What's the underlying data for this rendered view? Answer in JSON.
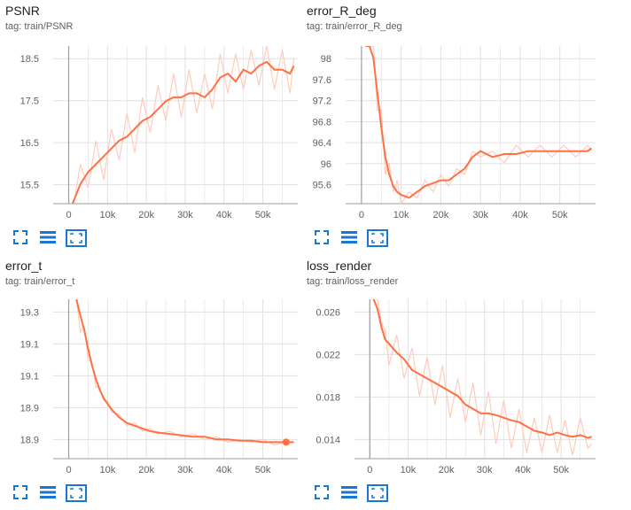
{
  "colors": {
    "line": "#ff7043",
    "raw": "#ffccbc",
    "grid": "#e0e0e0",
    "axis": "#9e9e9e",
    "icon": "#1976d2"
  },
  "icons": {
    "fullscreen": "fullscreen-icon",
    "data": "list-icon",
    "fit": "fit-domain-icon"
  },
  "chart_data": [
    {
      "type": "line",
      "title": "PSNR",
      "tag": "tag: train/PSNR",
      "x_ticks": [
        "0",
        "10k",
        "20k",
        "30k",
        "40k",
        "50k"
      ],
      "y_ticks": [
        "15.5",
        "16.5",
        "17.5",
        "18.5"
      ],
      "xlim": [
        -4000,
        59000
      ],
      "ylim": [
        15.0,
        19.0
      ],
      "grid": true,
      "series": [
        {
          "x": [
            1000,
            3000,
            5000,
            7000,
            9000,
            11000,
            13000,
            15000,
            17000,
            19000,
            21000,
            23000,
            25000,
            27000,
            29000,
            31000,
            33000,
            35000,
            37000,
            39000,
            41000,
            43000,
            45000,
            47000,
            49000,
            51000,
            53000,
            55000,
            57000,
            58000
          ],
          "smoothed": [
            15.0,
            15.5,
            15.8,
            16.0,
            16.2,
            16.4,
            16.6,
            16.7,
            16.9,
            17.1,
            17.2,
            17.4,
            17.6,
            17.7,
            17.7,
            17.8,
            17.8,
            17.7,
            17.9,
            18.2,
            18.3,
            18.1,
            18.4,
            18.3,
            18.5,
            18.6,
            18.4,
            18.4,
            18.3,
            18.5
          ],
          "raw": [
            14.8,
            16.0,
            15.4,
            16.6,
            15.6,
            16.9,
            16.1,
            17.3,
            16.3,
            17.7,
            16.8,
            18.0,
            17.1,
            18.3,
            17.2,
            18.4,
            17.3,
            18.3,
            17.4,
            18.8,
            17.8,
            18.8,
            17.9,
            18.9,
            18.0,
            19.0,
            17.9,
            18.9,
            17.8,
            18.7
          ]
        }
      ]
    },
    {
      "type": "line",
      "title": "error_R_deg",
      "tag": "tag: train/error_R_deg",
      "x_ticks": [
        "0",
        "10k",
        "20k",
        "30k",
        "40k",
        "50k"
      ],
      "y_ticks": [
        "95.6",
        "96",
        "96.4",
        "96.8",
        "97.2",
        "97.6",
        "98"
      ],
      "xlim": [
        -4000,
        59000
      ],
      "ylim": [
        95.4,
        98.1
      ],
      "grid": true,
      "series": [
        {
          "x": [
            1000,
            2000,
            3000,
            4000,
            5000,
            6000,
            7000,
            8000,
            9000,
            10000,
            12000,
            14000,
            16000,
            18000,
            20000,
            22000,
            24000,
            26000,
            28000,
            30000,
            33000,
            36000,
            39000,
            42000,
            45000,
            48000,
            51000,
            54000,
            57000,
            58000
          ],
          "smoothed": [
            98.1,
            98.1,
            97.9,
            97.3,
            96.7,
            96.2,
            95.9,
            95.7,
            95.6,
            95.55,
            95.5,
            95.6,
            95.7,
            95.75,
            95.8,
            95.8,
            95.9,
            96.0,
            96.2,
            96.3,
            96.2,
            96.25,
            96.25,
            96.3,
            96.3,
            96.3,
            96.3,
            96.3,
            96.3,
            96.35
          ],
          "raw": [
            98.1,
            98.1,
            98.1,
            97.0,
            97.0,
            95.9,
            96.1,
            95.6,
            95.8,
            95.4,
            95.6,
            95.5,
            95.8,
            95.6,
            95.9,
            95.7,
            96.0,
            95.9,
            96.3,
            96.2,
            96.3,
            96.1,
            96.4,
            96.2,
            96.4,
            96.2,
            96.4,
            96.2,
            96.4,
            96.3
          ]
        }
      ]
    },
    {
      "type": "line",
      "title": "error_t",
      "tag": "tag: train/error_t",
      "x_ticks": [
        "0",
        "10k",
        "20k",
        "30k",
        "40k",
        "50k"
      ],
      "y_ticks": [
        "18.9",
        "18.9",
        "19.1",
        "19.1",
        "19.3"
      ],
      "xlim": [
        -4000,
        59000
      ],
      "ylim": [
        18.84,
        19.42
      ],
      "grid": true,
      "series": [
        {
          "x": [
            2000,
            3000,
            4000,
            5000,
            6000,
            7000,
            8000,
            9000,
            10000,
            11000,
            13000,
            15000,
            17000,
            19000,
            21000,
            23000,
            26000,
            29000,
            32000,
            35000,
            38000,
            41000,
            44000,
            47000,
            50000,
            53000,
            56000,
            58000
          ],
          "smoothed": [
            19.42,
            19.36,
            19.31,
            19.24,
            19.18,
            19.13,
            19.09,
            19.06,
            19.04,
            19.02,
            18.99,
            18.97,
            18.96,
            18.95,
            18.94,
            18.935,
            18.93,
            18.925,
            18.92,
            18.92,
            18.91,
            18.91,
            18.905,
            18.905,
            18.9,
            18.9,
            18.9,
            18.9
          ],
          "raw": [
            19.42,
            19.3,
            19.32,
            19.2,
            19.19,
            19.1,
            19.1,
            19.05,
            19.05,
            19.01,
            19.0,
            18.96,
            18.97,
            18.94,
            18.95,
            18.93,
            18.94,
            18.92,
            18.93,
            18.91,
            18.92,
            18.9,
            18.91,
            18.9,
            18.91,
            18.89,
            18.9,
            18.9
          ]
        }
      ]
    },
    {
      "type": "line",
      "title": "loss_render",
      "tag": "tag: train/loss_render",
      "x_ticks": [
        "0",
        "10k",
        "20k",
        "30k",
        "40k",
        "50k"
      ],
      "y_ticks": [
        "0.014",
        "0.018",
        "0.022",
        "0.026"
      ],
      "xlim": [
        -4000,
        59000
      ],
      "ylim": [
        0.0118,
        0.0301
      ],
      "grid": true,
      "series": [
        {
          "x": [
            1000,
            2000,
            3000,
            4000,
            5000,
            7000,
            9000,
            11000,
            13000,
            15000,
            17000,
            19000,
            21000,
            23000,
            25000,
            27000,
            29000,
            31000,
            33000,
            35000,
            37000,
            39000,
            41000,
            43000,
            45000,
            47000,
            49000,
            51000,
            53000,
            55000,
            57000,
            58000
          ],
          "smoothed": [
            0.0301,
            0.029,
            0.027,
            0.0255,
            0.025,
            0.024,
            0.0232,
            0.022,
            0.0215,
            0.021,
            0.0205,
            0.02,
            0.0195,
            0.019,
            0.018,
            0.0175,
            0.017,
            0.017,
            0.0168,
            0.0165,
            0.0162,
            0.016,
            0.0155,
            0.015,
            0.0148,
            0.0145,
            0.0148,
            0.0145,
            0.0143,
            0.0145,
            0.0142,
            0.0143
          ],
          "raw": [
            0.0301,
            0.0301,
            0.0275,
            0.0265,
            0.0225,
            0.026,
            0.021,
            0.0245,
            0.019,
            0.0235,
            0.018,
            0.0225,
            0.0165,
            0.021,
            0.016,
            0.0205,
            0.0145,
            0.0195,
            0.0135,
            0.0185,
            0.013,
            0.0175,
            0.0125,
            0.0165,
            0.0125,
            0.0168,
            0.0125,
            0.0162,
            0.0122,
            0.0165,
            0.013,
            0.0135
          ]
        }
      ]
    }
  ]
}
